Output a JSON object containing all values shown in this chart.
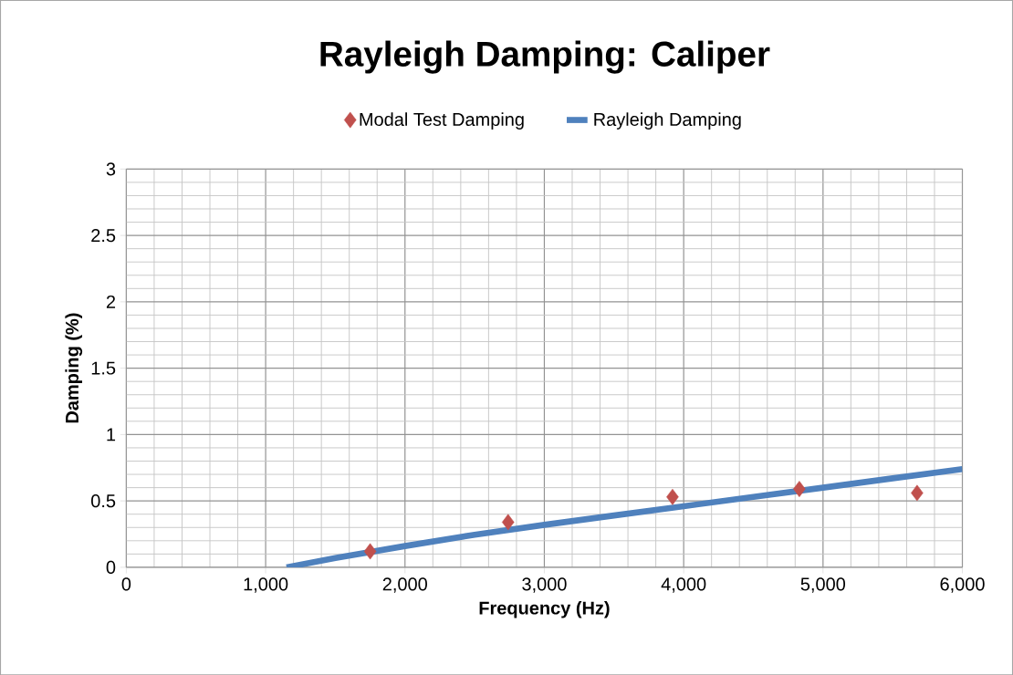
{
  "chart_data": {
    "type": "scatter",
    "title": "Rayleigh Damping: Caliper",
    "xlabel": "Frequency (Hz)",
    "ylabel": "Damping (%)",
    "series": [
      {
        "name": "Modal Test Damping",
        "color": "#c0504d",
        "marker": "diamond",
        "x": [
          1750,
          2740,
          3920,
          4830,
          5675
        ],
        "values": [
          0.12,
          0.34,
          0.53,
          0.59,
          0.56
        ]
      },
      {
        "name": "Rayleigh Damping",
        "type": "line",
        "color": "#4f81bd",
        "marker": "none",
        "line_style": "solid",
        "x": [
          1150,
          1500,
          2000,
          2500,
          3000,
          3500,
          4000,
          4500,
          5000,
          5500,
          6000
        ],
        "values": [
          0,
          0.07,
          0.16,
          0.245,
          0.32,
          0.39,
          0.46,
          0.53,
          0.6,
          0.67,
          0.74
        ]
      }
    ],
    "xlim": [
      0,
      6000
    ],
    "ylim": [
      0,
      3
    ],
    "xticks": [
      0,
      {
        "value": 1000,
        "label": "1,000"
      },
      {
        "value": 2000,
        "label": "2,000"
      },
      {
        "value": 3000,
        "label": "3,000"
      },
      {
        "value": 4000,
        "label": "4,000"
      },
      {
        "value": 5000,
        "label": "5,000"
      },
      {
        "value": 6000,
        "label": "6,000"
      }
    ],
    "yticks": [
      0,
      0.5,
      1,
      1.5,
      2,
      2.5,
      3
    ],
    "grid": true,
    "legend": "top"
  }
}
